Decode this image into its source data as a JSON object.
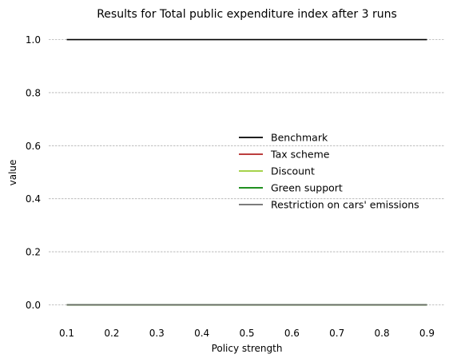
{
  "chart_data": {
    "type": "line",
    "title": "Results for Total public expenditure index after 3 runs",
    "xlabel": "Policy strength",
    "ylabel": "value",
    "x": [
      0.1,
      0.2,
      0.3,
      0.4,
      0.5,
      0.6,
      0.7,
      0.8,
      0.9
    ],
    "xticks": [
      "0.1",
      "0.2",
      "0.3",
      "0.4",
      "0.5",
      "0.6",
      "0.7",
      "0.8",
      "0.9"
    ],
    "yticks": [
      "0.0",
      "0.2",
      "0.4",
      "0.6",
      "0.8",
      "1.0"
    ],
    "ylim": [
      -0.05,
      1.05
    ],
    "xlim": [
      0.06,
      0.94
    ],
    "grid": "horizontal dashed",
    "legend_placement": "center-right",
    "series": [
      {
        "name": "Benchmark",
        "color": "#000000",
        "values": [
          1,
          1,
          1,
          1,
          1,
          1,
          1,
          1,
          1
        ]
      },
      {
        "name": "Tax scheme",
        "color": "#b22222",
        "values": [
          0,
          0,
          0,
          0,
          0,
          0,
          0,
          0,
          0
        ]
      },
      {
        "name": "Discount",
        "color": "#9acd32",
        "values": [
          0,
          0,
          0,
          0,
          0,
          0,
          0,
          0,
          0
        ]
      },
      {
        "name": "Green support",
        "color": "#008000",
        "values": [
          0,
          0,
          0,
          0,
          0,
          0,
          0,
          0,
          0
        ]
      },
      {
        "name": "Restriction on cars' emissions",
        "color": "#696969",
        "values": [
          0,
          0,
          0,
          0,
          0,
          0,
          0,
          0,
          0
        ]
      }
    ]
  }
}
